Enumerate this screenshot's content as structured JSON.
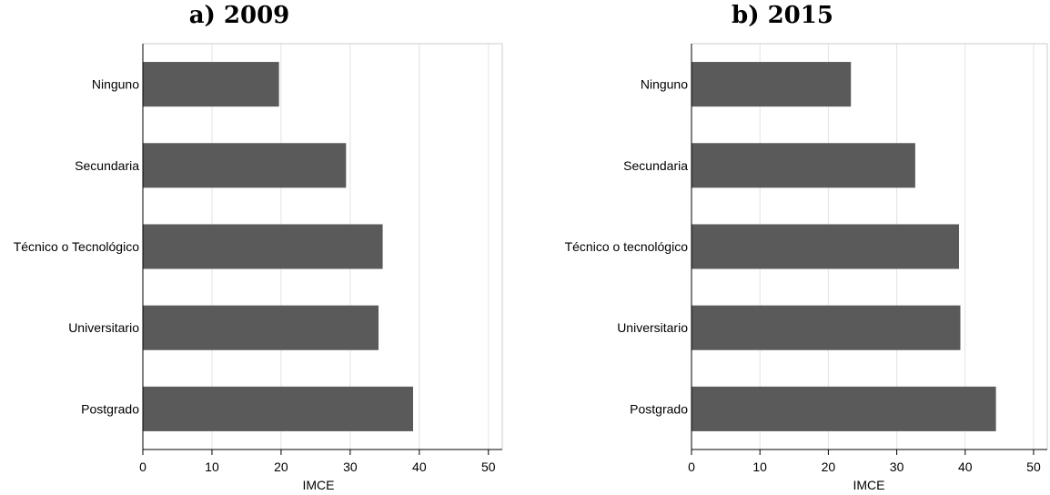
{
  "chart_data": [
    {
      "type": "bar",
      "orientation": "horizontal",
      "title": "a) 2009",
      "xlabel": "IMCE",
      "xlim": [
        0,
        52
      ],
      "xticks": [
        "0",
        "10",
        "20",
        "30",
        "40",
        "50"
      ],
      "categories": [
        "Ninguno",
        "Secundaria",
        "Técnico o Tecnológico",
        "Universitario",
        "Postgrado"
      ],
      "values": [
        19.7,
        29.4,
        34.7,
        34.1,
        39.1
      ],
      "bar_color": "#5a5a5a",
      "grid": true
    },
    {
      "type": "bar",
      "orientation": "horizontal",
      "title": "b) 2015",
      "xlabel": "IMCE",
      "xlim": [
        0,
        52
      ],
      "xticks": [
        "0",
        "10",
        "20",
        "30",
        "40",
        "50"
      ],
      "categories": [
        "Ninguno",
        "Secundaria",
        "Técnico o tecnológico",
        "Universitario",
        "Postgrado"
      ],
      "values": [
        23.3,
        32.7,
        39.1,
        39.3,
        44.5
      ],
      "bar_color": "#5a5a5a",
      "grid": true
    }
  ]
}
